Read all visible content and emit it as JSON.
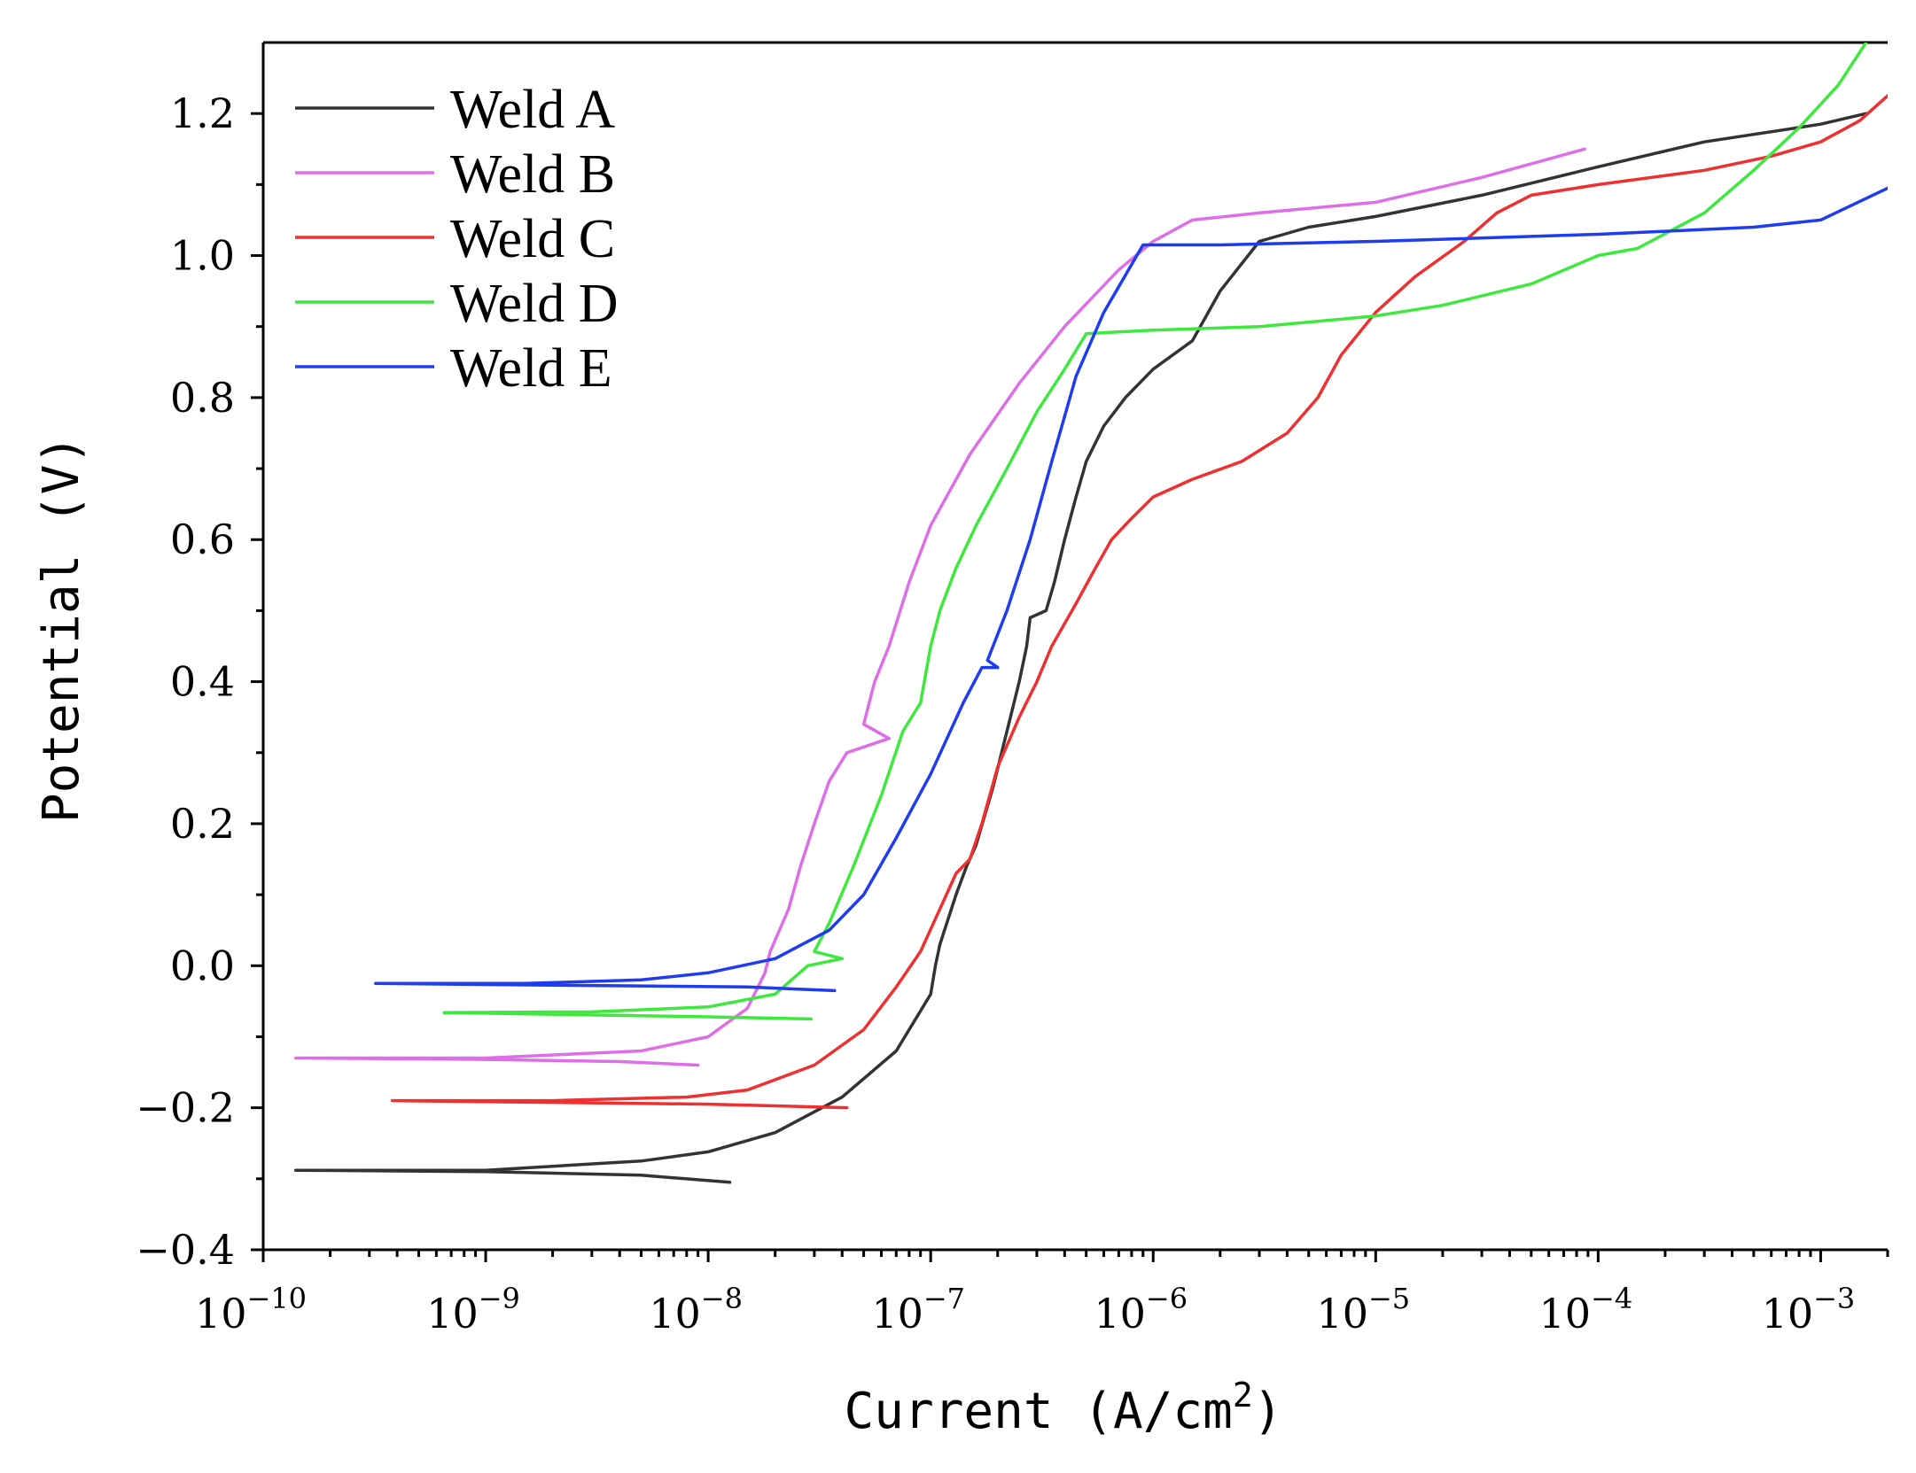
{
  "chart_data": {
    "type": "line",
    "title": "",
    "xlabel_main": "Current (A/cm",
    "xlabel_sup": "2",
    "xlabel_close": ")",
    "ylabel": "Potential (V)",
    "xscale": "log",
    "xlim": [
      1e-10,
      0.002
    ],
    "ylim": [
      -0.4,
      1.3
    ],
    "x_tick_labels": [
      {
        "base": "10",
        "exp": "-10",
        "value": 1e-10
      },
      {
        "base": "10",
        "exp": "-9",
        "value": 1e-09
      },
      {
        "base": "10",
        "exp": "-8",
        "value": 1e-08
      },
      {
        "base": "10",
        "exp": "-7",
        "value": 1e-07
      },
      {
        "base": "10",
        "exp": "-6",
        "value": 1e-06
      },
      {
        "base": "10",
        "exp": "-5",
        "value": 1e-05
      },
      {
        "base": "10",
        "exp": "-4",
        "value": 0.0001
      },
      {
        "base": "10",
        "exp": "-3",
        "value": 0.001
      }
    ],
    "y_ticks": [
      {
        "value": -0.4,
        "label": "−0.4"
      },
      {
        "value": -0.2,
        "label": "−0.2"
      },
      {
        "value": 0.0,
        "label": "0.0"
      },
      {
        "value": 0.2,
        "label": "0.2"
      },
      {
        "value": 0.4,
        "label": "0.4"
      },
      {
        "value": 0.6,
        "label": "0.6"
      },
      {
        "value": 0.8,
        "label": "0.8"
      },
      {
        "value": 1.0,
        "label": "1.0"
      },
      {
        "value": 1.2,
        "label": "1.2"
      }
    ],
    "legend_position": "top-left",
    "series": [
      {
        "name": "Weld A",
        "color": "#333333",
        "points": [
          [
            1.25e-08,
            -0.305
          ],
          [
            5e-09,
            -0.295
          ],
          [
            1e-09,
            -0.29
          ],
          [
            1.4e-10,
            -0.288
          ],
          [
            1e-09,
            -0.288
          ],
          [
            5e-09,
            -0.275
          ],
          [
            1e-08,
            -0.262
          ],
          [
            2e-08,
            -0.235
          ],
          [
            4e-08,
            -0.185
          ],
          [
            7e-08,
            -0.12
          ],
          [
            1e-07,
            -0.04
          ],
          [
            1.05e-07,
            0.0
          ],
          [
            1.1e-07,
            0.03
          ],
          [
            1.3e-07,
            0.1
          ],
          [
            1.45e-07,
            0.14
          ],
          [
            1.6e-07,
            0.17
          ],
          [
            1.9e-07,
            0.25
          ],
          [
            2.2e-07,
            0.33
          ],
          [
            2.5e-07,
            0.4
          ],
          [
            2.7e-07,
            0.45
          ],
          [
            2.8e-07,
            0.49
          ],
          [
            3.3e-07,
            0.5
          ],
          [
            3.6e-07,
            0.54
          ],
          [
            4e-07,
            0.6
          ],
          [
            4.5e-07,
            0.66
          ],
          [
            5e-07,
            0.71
          ],
          [
            6e-07,
            0.76
          ],
          [
            7.5e-07,
            0.8
          ],
          [
            1e-06,
            0.84
          ],
          [
            1.5e-06,
            0.88
          ],
          [
            2e-06,
            0.95
          ],
          [
            3e-06,
            1.02
          ],
          [
            5e-06,
            1.04
          ],
          [
            1e-05,
            1.055
          ],
          [
            3e-05,
            1.085
          ],
          [
            0.0001,
            1.125
          ],
          [
            0.0003,
            1.16
          ],
          [
            0.001,
            1.185
          ],
          [
            0.0016,
            1.2
          ]
        ]
      },
      {
        "name": "Weld B",
        "color": "#dd6ee8",
        "points": [
          [
            9e-09,
            -0.14
          ],
          [
            4e-09,
            -0.135
          ],
          [
            1e-09,
            -0.132
          ],
          [
            1.4e-10,
            -0.13
          ],
          [
            1e-09,
            -0.13
          ],
          [
            5e-09,
            -0.12
          ],
          [
            1e-08,
            -0.1
          ],
          [
            1.5e-08,
            -0.06
          ],
          [
            1.8e-08,
            -0.01
          ],
          [
            1.9e-08,
            0.02
          ],
          [
            2.3e-08,
            0.08
          ],
          [
            2.6e-08,
            0.14
          ],
          [
            3e-08,
            0.2
          ],
          [
            3.5e-08,
            0.26
          ],
          [
            4.2e-08,
            0.3
          ],
          [
            6.5e-08,
            0.32
          ],
          [
            5e-08,
            0.34
          ],
          [
            5.6e-08,
            0.4
          ],
          [
            6.5e-08,
            0.45
          ],
          [
            8e-08,
            0.54
          ],
          [
            1e-07,
            0.62
          ],
          [
            1.5e-07,
            0.72
          ],
          [
            2.5e-07,
            0.82
          ],
          [
            4e-07,
            0.9
          ],
          [
            7e-07,
            0.98
          ],
          [
            1e-06,
            1.02
          ],
          [
            1.5e-06,
            1.05
          ],
          [
            3e-06,
            1.06
          ],
          [
            1e-05,
            1.075
          ],
          [
            3e-05,
            1.11
          ],
          [
            8.7e-05,
            1.15
          ]
        ]
      },
      {
        "name": "Weld C",
        "color": "#ee3030",
        "points": [
          [
            4.2e-08,
            -0.2
          ],
          [
            1e-08,
            -0.195
          ],
          [
            3.8e-10,
            -0.19
          ],
          [
            2e-09,
            -0.19
          ],
          [
            8e-09,
            -0.185
          ],
          [
            1.5e-08,
            -0.175
          ],
          [
            3e-08,
            -0.14
          ],
          [
            5e-08,
            -0.09
          ],
          [
            7e-08,
            -0.03
          ],
          [
            9e-08,
            0.02
          ],
          [
            1.1e-07,
            0.08
          ],
          [
            1.3e-07,
            0.13
          ],
          [
            1.5e-07,
            0.15
          ],
          [
            1.7e-07,
            0.2
          ],
          [
            2e-07,
            0.28
          ],
          [
            2.5e-07,
            0.35
          ],
          [
            3e-07,
            0.4
          ],
          [
            3.5e-07,
            0.45
          ],
          [
            4.5e-07,
            0.51
          ],
          [
            5.5e-07,
            0.56
          ],
          [
            6.5e-07,
            0.6
          ],
          [
            8e-07,
            0.63
          ],
          [
            1e-06,
            0.66
          ],
          [
            1.5e-06,
            0.685
          ],
          [
            2.5e-06,
            0.71
          ],
          [
            4e-06,
            0.75
          ],
          [
            5.5e-06,
            0.8
          ],
          [
            7e-06,
            0.86
          ],
          [
            1e-05,
            0.92
          ],
          [
            1.5e-05,
            0.97
          ],
          [
            2.5e-05,
            1.02
          ],
          [
            3.5e-05,
            1.06
          ],
          [
            5e-05,
            1.085
          ],
          [
            0.0001,
            1.1
          ],
          [
            0.0003,
            1.12
          ],
          [
            0.0006,
            1.14
          ],
          [
            0.001,
            1.16
          ],
          [
            0.0015,
            1.19
          ],
          [
            0.002,
            1.225
          ]
        ]
      },
      {
        "name": "Weld D",
        "color": "#3ee83e",
        "points": [
          [
            2.9e-08,
            -0.075
          ],
          [
            1e-08,
            -0.072
          ],
          [
            6.5e-10,
            -0.066
          ],
          [
            3e-09,
            -0.065
          ],
          [
            1e-08,
            -0.058
          ],
          [
            2e-08,
            -0.04
          ],
          [
            2.8e-08,
            0.0
          ],
          [
            4e-08,
            0.01
          ],
          [
            3e-08,
            0.02
          ],
          [
            3.5e-08,
            0.06
          ],
          [
            4.5e-08,
            0.14
          ],
          [
            6e-08,
            0.24
          ],
          [
            7.5e-08,
            0.33
          ],
          [
            9e-08,
            0.37
          ],
          [
            1e-07,
            0.45
          ],
          [
            1.1e-07,
            0.5
          ],
          [
            1.3e-07,
            0.56
          ],
          [
            1.6e-07,
            0.62
          ],
          [
            2.2e-07,
            0.7
          ],
          [
            3e-07,
            0.78
          ],
          [
            4e-07,
            0.84
          ],
          [
            5e-07,
            0.89
          ],
          [
            1e-06,
            0.895
          ],
          [
            3e-06,
            0.9
          ],
          [
            1e-05,
            0.915
          ],
          [
            2e-05,
            0.93
          ],
          [
            5e-05,
            0.96
          ],
          [
            0.0001,
            1.0
          ],
          [
            0.00015,
            1.01
          ],
          [
            0.0003,
            1.06
          ],
          [
            0.0005,
            1.12
          ],
          [
            0.0008,
            1.18
          ],
          [
            0.0012,
            1.24
          ],
          [
            0.0016,
            1.3
          ]
        ]
      },
      {
        "name": "Weld E",
        "color": "#1f3cf0",
        "points": [
          [
            3.7e-08,
            -0.035
          ],
          [
            1.5e-08,
            -0.03
          ],
          [
            3.2e-10,
            -0.025
          ],
          [
            1.5e-09,
            -0.025
          ],
          [
            5e-09,
            -0.02
          ],
          [
            1e-08,
            -0.01
          ],
          [
            2e-08,
            0.01
          ],
          [
            3.5e-08,
            0.05
          ],
          [
            5e-08,
            0.1
          ],
          [
            7e-08,
            0.18
          ],
          [
            1e-07,
            0.27
          ],
          [
            1.4e-07,
            0.37
          ],
          [
            1.7e-07,
            0.42
          ],
          [
            2e-07,
            0.42
          ],
          [
            1.8e-07,
            0.43
          ],
          [
            2.2e-07,
            0.5
          ],
          [
            2.8e-07,
            0.6
          ],
          [
            3.5e-07,
            0.71
          ],
          [
            4.5e-07,
            0.83
          ],
          [
            6e-07,
            0.92
          ],
          [
            9e-07,
            1.015
          ],
          [
            2e-06,
            1.015
          ],
          [
            1e-05,
            1.02
          ],
          [
            0.0001,
            1.03
          ],
          [
            0.0005,
            1.04
          ],
          [
            0.001,
            1.05
          ],
          [
            0.002,
            1.095
          ]
        ]
      }
    ]
  }
}
